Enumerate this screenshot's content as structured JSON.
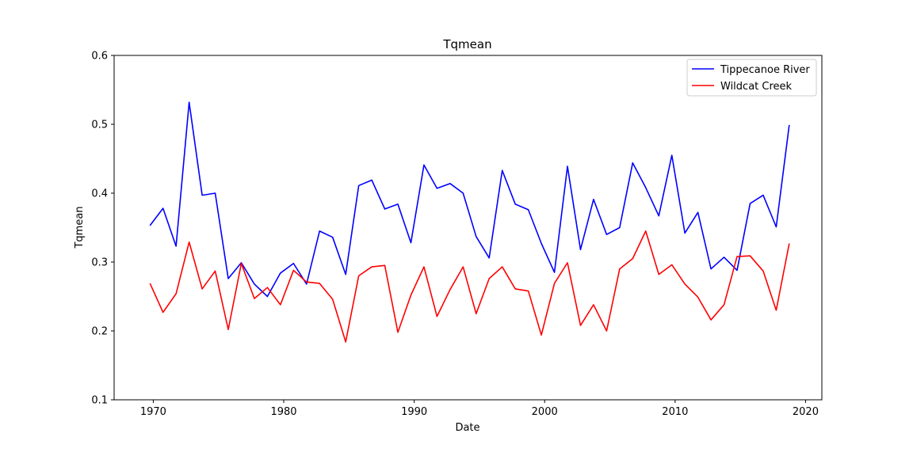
{
  "chart_data": {
    "type": "line",
    "title": "Tqmean",
    "xlabel": "Date",
    "ylabel": "Tqmean",
    "xlim": [
      "1967-01-01",
      "2021-04-01"
    ],
    "ylim": [
      0.1,
      0.6
    ],
    "xticks": [
      "1970",
      "1980",
      "1990",
      "2000",
      "2010",
      "2020"
    ],
    "yticks": [
      "0.1",
      "0.2",
      "0.3",
      "0.4",
      "0.5",
      "0.6"
    ],
    "grid": false,
    "legend_position": "top-right",
    "x": [
      "1969-10-01",
      "1970-10-01",
      "1971-10-01",
      "1972-10-01",
      "1973-10-01",
      "1974-10-01",
      "1975-10-01",
      "1976-10-01",
      "1977-10-01",
      "1978-10-01",
      "1979-10-01",
      "1980-10-01",
      "1981-10-01",
      "1982-10-01",
      "1983-10-01",
      "1984-10-01",
      "1985-10-01",
      "1986-10-01",
      "1987-10-01",
      "1988-10-01",
      "1989-10-01",
      "1990-10-01",
      "1991-10-01",
      "1992-10-01",
      "1993-10-01",
      "1994-10-01",
      "1995-10-01",
      "1996-10-01",
      "1997-10-01",
      "1998-10-01",
      "1999-10-01",
      "2000-10-01",
      "2001-10-01",
      "2002-10-01",
      "2003-10-01",
      "2004-10-01",
      "2005-10-01",
      "2006-10-01",
      "2007-10-01",
      "2008-10-01",
      "2009-10-01",
      "2010-10-01",
      "2011-10-01",
      "2012-10-01",
      "2013-10-01",
      "2014-10-01",
      "2015-10-01",
      "2016-10-01",
      "2017-10-01",
      "2018-10-01"
    ],
    "series": [
      {
        "name": "Tippecanoe River",
        "color": "#0000ff",
        "values": [
          0.353,
          0.378,
          0.323,
          0.532,
          0.397,
          0.4,
          0.276,
          0.299,
          0.268,
          0.25,
          0.284,
          0.298,
          0.268,
          0.345,
          0.336,
          0.282,
          0.411,
          0.419,
          0.377,
          0.384,
          0.328,
          0.441,
          0.407,
          0.414,
          0.4,
          0.337,
          0.306,
          0.433,
          0.384,
          0.376,
          0.327,
          0.285,
          0.439,
          0.318,
          0.391,
          0.34,
          0.35,
          0.444,
          0.408,
          0.367,
          0.455,
          0.342,
          0.372,
          0.29,
          0.307,
          0.288,
          0.385,
          0.397,
          0.351,
          0.499
        ]
      },
      {
        "name": "Wildcat Creek",
        "color": "#ff0000",
        "values": [
          0.269,
          0.227,
          0.254,
          0.329,
          0.261,
          0.287,
          0.202,
          0.298,
          0.247,
          0.263,
          0.238,
          0.288,
          0.271,
          0.269,
          0.246,
          0.184,
          0.28,
          0.293,
          0.295,
          0.198,
          0.252,
          0.293,
          0.221,
          0.26,
          0.293,
          0.225,
          0.276,
          0.293,
          0.261,
          0.258,
          0.194,
          0.269,
          0.299,
          0.208,
          0.238,
          0.2,
          0.29,
          0.305,
          0.345,
          0.282,
          0.296,
          0.268,
          0.249,
          0.216,
          0.238,
          0.308,
          0.309,
          0.287,
          0.23,
          0.327
        ]
      }
    ]
  }
}
